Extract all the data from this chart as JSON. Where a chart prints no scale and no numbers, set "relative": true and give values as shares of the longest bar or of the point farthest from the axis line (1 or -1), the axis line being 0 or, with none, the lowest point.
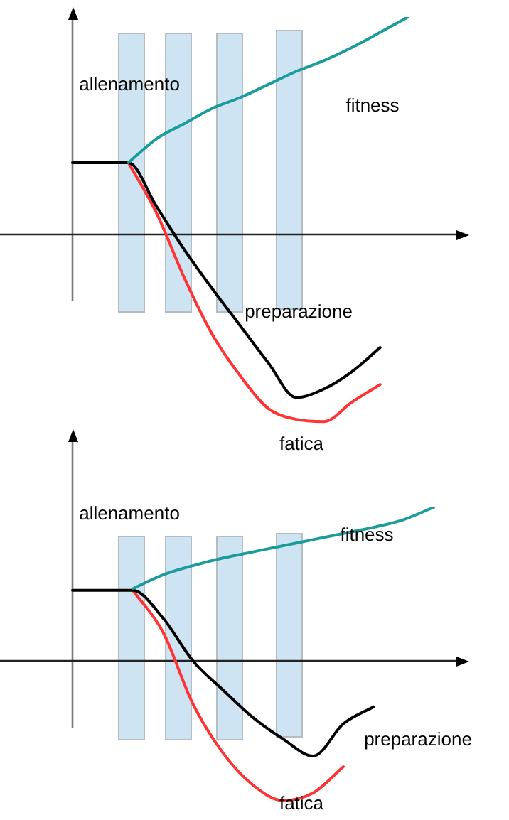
{
  "chart_data": [
    {
      "type": "line",
      "relative": true,
      "categories": [
        null,
        null,
        null,
        null,
        null,
        null,
        null,
        null,
        null,
        null,
        null,
        null,
        null
      ],
      "grid": false,
      "marker": "none",
      "line_style": "solid",
      "annotations": [
        "allenamento"
      ],
      "series": [
        {
          "name": "fitness",
          "color": "#1a9c9c",
          "values": [
            null,
            null,
            0.33,
            0.44,
            0.51,
            0.58,
            0.63,
            0.69,
            0.75,
            0.8,
            0.86,
            0.93,
            1
          ]
        },
        {
          "name": "preparazione",
          "color": "#000000",
          "values": [
            0.33,
            0.33,
            0.33,
            0.13,
            -0.07,
            -0.25,
            -0.42,
            -0.59,
            -0.75,
            -0.71,
            -0.63,
            -0.52,
            null
          ]
        },
        {
          "name": "fatica",
          "color": "#ff3333",
          "values": [
            null,
            null,
            0.33,
            0.1,
            -0.2,
            -0.46,
            -0.65,
            -0.8,
            -0.85,
            -0.86,
            -0.77,
            -0.69,
            null
          ]
        }
      ]
    },
    {
      "type": "line",
      "relative": true,
      "categories": [
        null,
        null,
        null,
        null,
        null,
        null,
        null,
        null,
        null,
        null,
        null,
        null,
        null
      ],
      "grid": false,
      "marker": "none",
      "line_style": "solid",
      "annotations": [
        "allenamento"
      ],
      "series": [
        {
          "name": "fitness",
          "color": "#1a9c9c",
          "values": [
            null,
            null,
            0.47,
            0.56,
            0.62,
            0.67,
            0.71,
            0.75,
            0.79,
            0.83,
            0.87,
            0.92,
            1
          ]
        },
        {
          "name": "preparazione",
          "color": "#000000",
          "values": [
            0.46,
            0.46,
            0.46,
            0.28,
            0,
            -0.19,
            -0.37,
            -0.51,
            -0.62,
            -0.41,
            -0.3,
            null,
            null
          ]
        },
        {
          "name": "fatica",
          "color": "#ff3333",
          "values": [
            null,
            null,
            0.46,
            0.19,
            -0.28,
            -0.6,
            -0.81,
            -0.91,
            -0.86,
            -0.69,
            null,
            null,
            null
          ]
        }
      ]
    }
  ]
}
